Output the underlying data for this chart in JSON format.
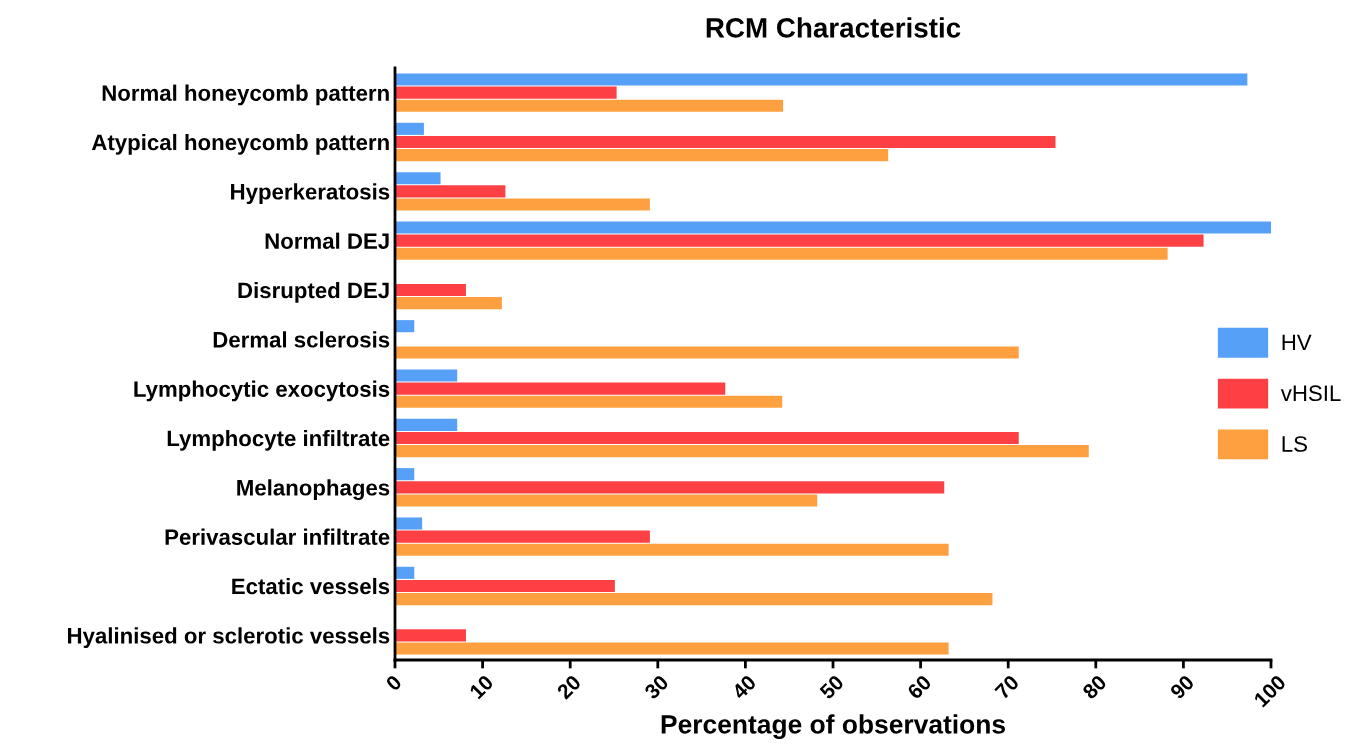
{
  "chart_data": {
    "type": "bar",
    "orientation": "horizontal",
    "title": "RCM Characteristic",
    "xlabel": "Percentage of observations",
    "categories": [
      "Normal honeycomb pattern",
      "Atypical honeycomb pattern",
      "Hyperkeratosis",
      "Normal DEJ",
      "Disrupted DEJ",
      "Dermal sclerosis",
      "Lymphocytic exocytosis",
      "Lymphocyte infiltrate",
      "Melanophages",
      "Perivascular infiltrate",
      "Ectatic vessels",
      "Hyalinised or sclerotic vessels"
    ],
    "series": [
      {
        "name": "HV",
        "color": "#56a0f8",
        "values": [
          97.3,
          3.3,
          5.2,
          100,
          0,
          2.2,
          7.1,
          7.1,
          2.2,
          3.1,
          2.2,
          0
        ]
      },
      {
        "name": "vHSIL",
        "color": "#fc4044",
        "values": [
          25.3,
          75.4,
          12.6,
          92.3,
          8.1,
          0,
          37.7,
          71.2,
          62.7,
          29.1,
          25.1,
          8.1
        ]
      },
      {
        "name": "LS",
        "color": "#fea040",
        "values": [
          44.3,
          56.3,
          29.1,
          88.2,
          12.2,
          71.2,
          44.2,
          79.2,
          48.2,
          63.2,
          68.2,
          63.2
        ]
      }
    ],
    "xlim": [
      0,
      100
    ],
    "xticks": [
      0,
      10,
      20,
      30,
      40,
      50,
      60,
      70,
      80,
      90,
      100
    ],
    "grid": false,
    "legend": "right"
  }
}
